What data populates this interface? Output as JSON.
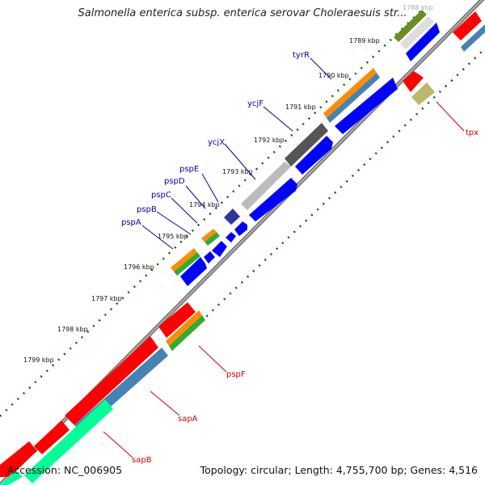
{
  "title": "Salmonella enterica subsp. enterica serovar Choleraesuis str...",
  "footer": {
    "accession": "Accession: NC_006905",
    "summary": "Topology: circular; Length: 4,755,700 bp; Genes: 4,516"
  },
  "ticks": [
    {
      "label": "1788 kbp",
      "faded": true
    },
    {
      "label": "1789 kbp"
    },
    {
      "label": "1790 kbp"
    },
    {
      "label": "1791 kbp"
    },
    {
      "label": "1792 kbp"
    },
    {
      "label": "1793 kbp"
    },
    {
      "label": "1794 kbp"
    },
    {
      "label": "1795 kbp"
    },
    {
      "label": "1796 kbp"
    },
    {
      "label": "1797 kbp"
    },
    {
      "label": "1798 kbp"
    },
    {
      "label": "1799 kbp"
    }
  ],
  "gene_labels": {
    "forward": [
      "tyrR",
      "ycjF",
      "ycjX",
      "pspE",
      "pspD",
      "pspC",
      "pspB",
      "pspA"
    ],
    "reverse": [
      "tpx",
      "pspF",
      "sapA",
      "sapB"
    ]
  },
  "colors": {
    "forward_label": "#0000aa",
    "reverse_label": "#cc0000",
    "cds_blue": "#0000ff",
    "cds_red": "#ff0000",
    "orange": "#ff8c00",
    "steel_blue": "#4682b4",
    "green": "#33aa33",
    "olive": "#6b8e23",
    "khaki": "#bdb76b",
    "spring_green": "#00ff99",
    "dark_gray": "#555555",
    "light_gray": "#bbbbbb",
    "navy": "#333399",
    "backbone": "#888888",
    "tick_dots": "#006600"
  }
}
